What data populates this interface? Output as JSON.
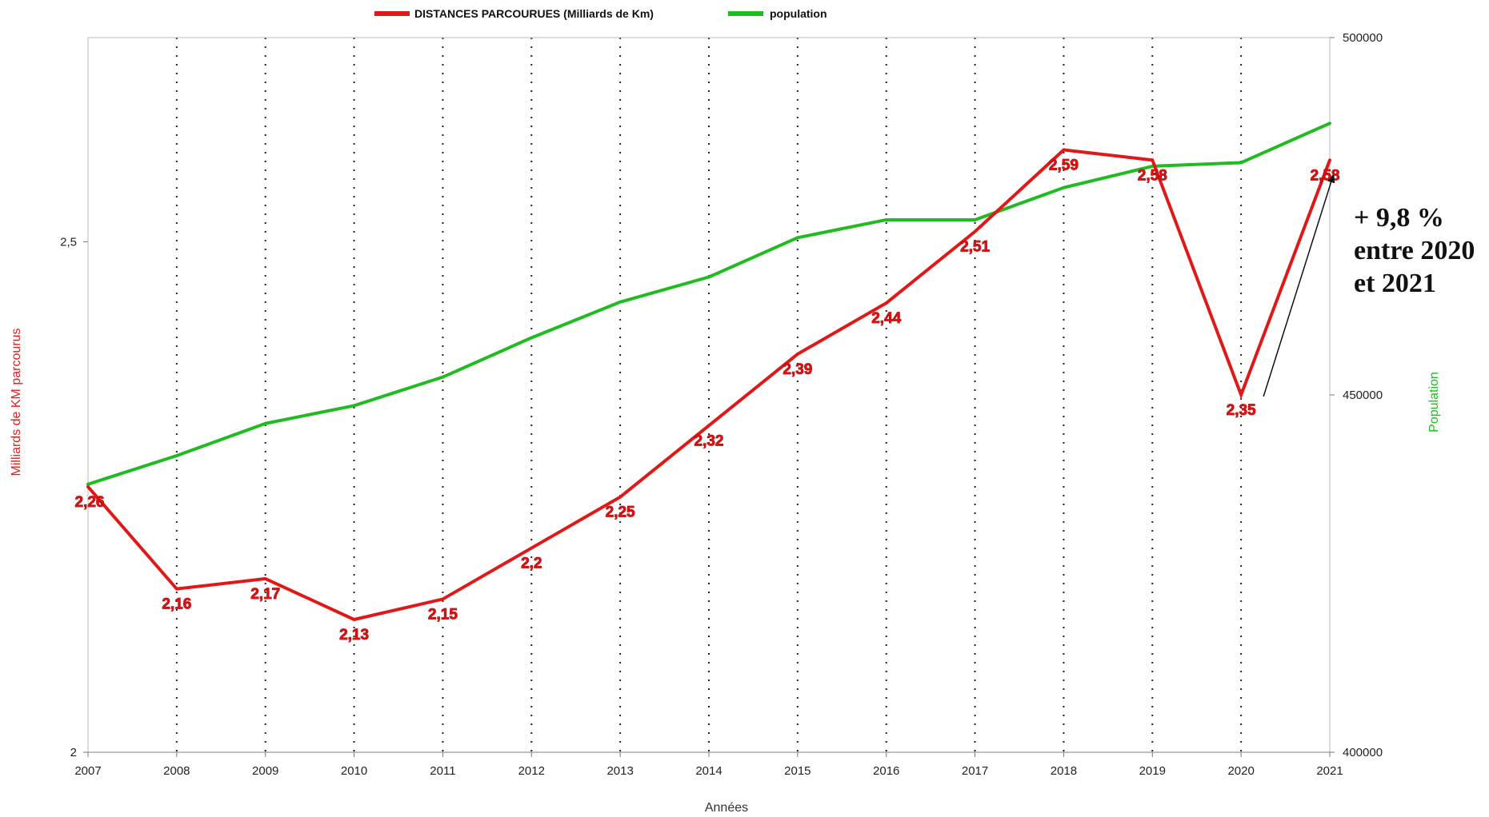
{
  "chart_data": {
    "type": "line",
    "xlabel": "Années",
    "ylabel": "Milliards de KM parcourus",
    "y2label": "Population",
    "x": [
      "2007",
      "2008",
      "2009",
      "2010",
      "2011",
      "2012",
      "2013",
      "2014",
      "2015",
      "2016",
      "2017",
      "2018",
      "2019",
      "2020",
      "2021"
    ],
    "ylim": [
      2,
      2.7
    ],
    "y2lim": [
      400000,
      500000
    ],
    "yticks": [
      "2",
      "2,5"
    ],
    "y2ticks": [
      "400000",
      "450000",
      "500000"
    ],
    "grid": "vertical dotted",
    "legend_position": "top",
    "series": [
      {
        "name": "DISTANCES PARCOURUES (Milliards de Km)",
        "axis": "left",
        "color": "#e01818",
        "values": [
          2.26,
          2.16,
          2.17,
          2.13,
          2.15,
          2.2,
          2.25,
          2.32,
          2.39,
          2.44,
          2.51,
          2.59,
          2.58,
          2.35,
          2.58
        ],
        "labels": [
          "2,26",
          "2,16",
          "2,17",
          "2,13",
          "2,15",
          "2,2",
          "2,25",
          "2,32",
          "2,39",
          "2,44",
          "2,51",
          "2,59",
          "2,58",
          "2,35",
          "2,58"
        ]
      },
      {
        "name": "population",
        "axis": "right",
        "color": "#20bb20",
        "values": [
          437500,
          441500,
          446000,
          448500,
          452500,
          458000,
          463000,
          466500,
          472000,
          474500,
          474500,
          479000,
          482000,
          482500,
          488000
        ]
      }
    ],
    "annotation": {
      "lines": [
        "+  9,8 %",
        "entre 2020",
        "et 2021"
      ],
      "arrow_from": "2020",
      "arrow_to": "2021"
    }
  }
}
